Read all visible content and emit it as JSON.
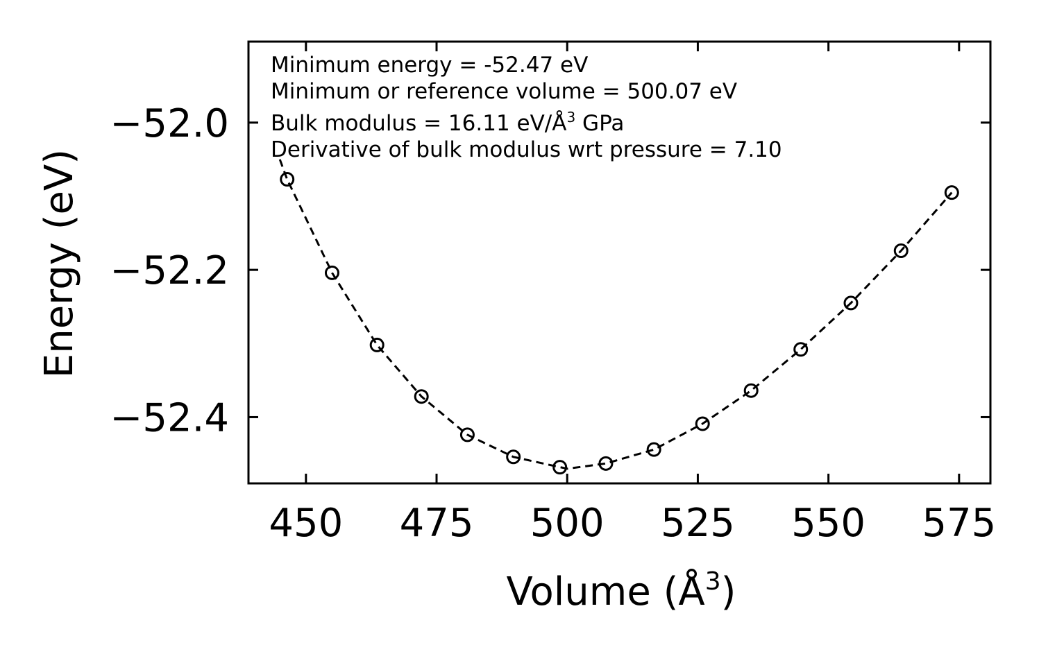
{
  "chart_data": {
    "type": "scatter",
    "title": "",
    "xlabel": "Volume (Å",
    "xlabel_sup": "3",
    "xlabel_close": ")",
    "ylabel": "Energy (eV)",
    "xlim": [
      439,
      581
    ],
    "ylim": [
      -52.49,
      -51.89
    ],
    "xticks": [
      450,
      475,
      500,
      525,
      550,
      575
    ],
    "yticks": [
      -52.0,
      -52.2,
      -52.4
    ],
    "xtick_labels": [
      "450",
      "475",
      "500",
      "525",
      "550",
      "575"
    ],
    "ytick_labels": [
      "−52.0",
      "−52.2",
      "−52.4"
    ],
    "series": [
      {
        "name": "data",
        "style": "open-circle markers",
        "x": [
          446.4,
          455.0,
          463.6,
          472.1,
          480.9,
          489.7,
          498.6,
          507.4,
          516.6,
          525.9,
          535.2,
          544.7,
          554.3,
          563.9,
          573.6
        ],
        "y": [
          -52.077,
          -52.204,
          -52.302,
          -52.372,
          -52.424,
          -52.454,
          -52.468,
          -52.463,
          -52.444,
          -52.409,
          -52.364,
          -52.308,
          -52.245,
          -52.174,
          -52.095
        ]
      },
      {
        "name": "fit",
        "style": "dashed line",
        "x": [
          445.0,
          446.4,
          455.0,
          463.6,
          472.1,
          480.9,
          489.7,
          498.6,
          500.1,
          507.4,
          516.6,
          525.9,
          535.2,
          544.7,
          554.3,
          563.9,
          573.6
        ],
        "y": [
          -52.05,
          -52.077,
          -52.204,
          -52.302,
          -52.372,
          -52.424,
          -52.454,
          -52.468,
          -52.47,
          -52.463,
          -52.444,
          -52.409,
          -52.364,
          -52.308,
          -52.245,
          -52.174,
          -52.095
        ]
      }
    ],
    "annotations": {
      "min_energy": "Minimum energy = -52.47 eV",
      "min_volume": "Minimum or reference volume = 500.07 eV",
      "bulk_modulus_prefix": "Bulk modulus = 16.11 eV/Å",
      "bulk_modulus_sup": "3",
      "bulk_modulus_suffix": " GPa",
      "derivative": "Derivative of bulk modulus wrt pressure = 7.10"
    },
    "grid": false,
    "legend": "none",
    "colors": {
      "line": "#000000",
      "marker": "#000000",
      "background": "#ffffff"
    }
  }
}
